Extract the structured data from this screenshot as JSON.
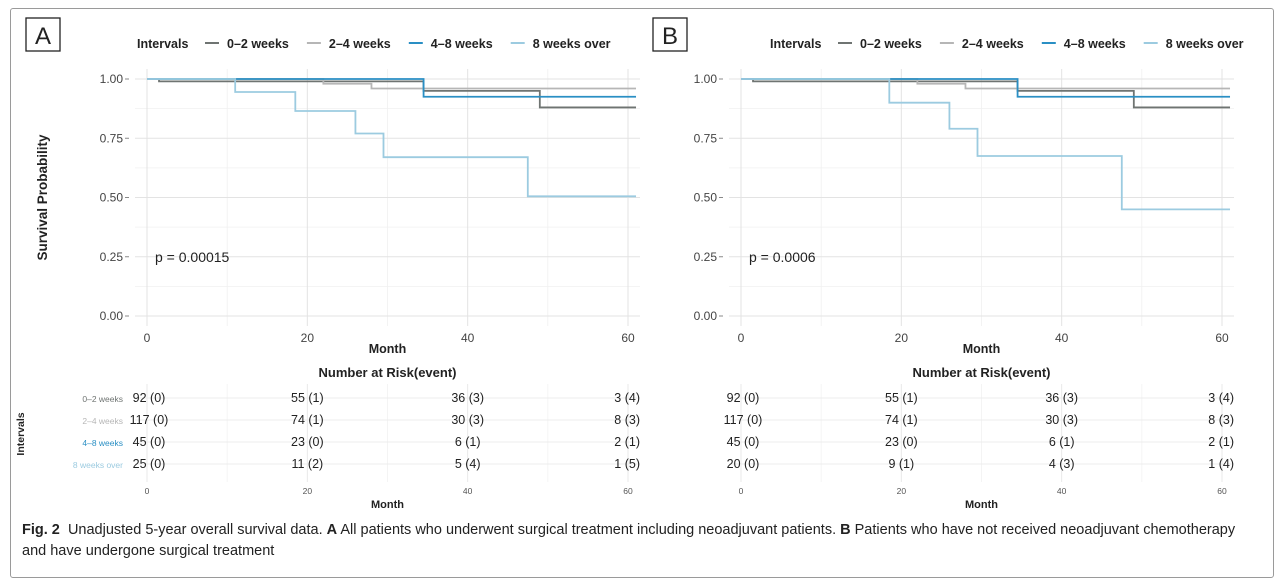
{
  "caption": {
    "fig_label": "Fig. 2",
    "intro": "Unadjusted 5-year overall survival data.",
    "a_label": "A",
    "a_text": "All patients who underwent surgical treatment including neoadjuvant patients.",
    "b_label": "B",
    "b_text": "Patients who have not received neoadjuvant chemotherapy and have undergone surgical treatment"
  },
  "colors": {
    "0-2 weeks": "#6f7472",
    "2-4 weeks": "#b6b6b6",
    "4-8 weeks": "#2a8fc4",
    "8 weeks over": "#9ccbe0"
  },
  "chart_data": [
    {
      "panel": "A",
      "type": "line",
      "step": true,
      "ylabel": "Survival Probability",
      "xlabel": "Month",
      "xlim": [
        0,
        60
      ],
      "ylim": [
        0,
        1
      ],
      "xticks": [
        0,
        20,
        40,
        60
      ],
      "yticks": [
        "0.00",
        "0.25",
        "0.50",
        "0.75",
        "1.00"
      ],
      "legend_title": "Intervals",
      "legend_position": "top",
      "grid": true,
      "pvalue": "p = 0.00015",
      "series": [
        {
          "name": "0–2 weeks",
          "x": [
            0,
            1.5,
            34.5,
            49,
            61
          ],
          "y": [
            1.0,
            0.99,
            0.95,
            0.88,
            0.88
          ]
        },
        {
          "name": "2–4 weeks",
          "x": [
            0,
            22,
            28,
            61
          ],
          "y": [
            1.0,
            0.98,
            0.96,
            0.96
          ]
        },
        {
          "name": "4–8 weeks",
          "x": [
            0,
            34.5,
            61
          ],
          "y": [
            1.0,
            0.925,
            0.925
          ]
        },
        {
          "name": "8 weeks over",
          "x": [
            0,
            11,
            18.5,
            26,
            29.5,
            47.5,
            61
          ],
          "y": [
            1.0,
            0.945,
            0.865,
            0.77,
            0.67,
            0.505,
            0.505
          ]
        }
      ],
      "risk_table": {
        "title": "Number at Risk(event)",
        "ylabel": "Intervals",
        "xlabel": "Month",
        "xticks": [
          0,
          20,
          40,
          60
        ],
        "show_row_labels": true,
        "rows": [
          {
            "label": "0–2 weeks",
            "values": [
              "92 (0)",
              "55 (1)",
              "36 (3)",
              "3 (4)"
            ]
          },
          {
            "label": "2–4 weeks",
            "values": [
              "117 (0)",
              "74 (1)",
              "30 (3)",
              "8 (3)"
            ]
          },
          {
            "label": "4–8 weeks",
            "values": [
              "45 (0)",
              "23 (0)",
              "6 (1)",
              "2 (1)"
            ]
          },
          {
            "label": "8 weeks over",
            "values": [
              "25 (0)",
              "11 (2)",
              "5 (4)",
              "1 (5)"
            ]
          }
        ]
      }
    },
    {
      "panel": "B",
      "type": "line",
      "step": true,
      "ylabel": "",
      "xlabel": "Month",
      "xlim": [
        0,
        60
      ],
      "ylim": [
        0,
        1
      ],
      "xticks": [
        0,
        20,
        40,
        60
      ],
      "yticks": [
        "0.00",
        "0.25",
        "0.50",
        "0.75",
        "1.00"
      ],
      "legend_title": "Intervals",
      "legend_position": "top",
      "grid": true,
      "pvalue": "p = 0.0006",
      "series": [
        {
          "name": "0–2 weeks",
          "x": [
            0,
            1.5,
            34.5,
            49,
            61
          ],
          "y": [
            1.0,
            0.99,
            0.95,
            0.88,
            0.88
          ]
        },
        {
          "name": "2–4 weeks",
          "x": [
            0,
            22,
            28,
            61
          ],
          "y": [
            1.0,
            0.98,
            0.96,
            0.96
          ]
        },
        {
          "name": "4–8 weeks",
          "x": [
            0,
            34.5,
            61
          ],
          "y": [
            1.0,
            0.925,
            0.925
          ]
        },
        {
          "name": "8 weeks over",
          "x": [
            0,
            18.5,
            26,
            29.5,
            47.5,
            61
          ],
          "y": [
            1.0,
            0.9,
            0.79,
            0.675,
            0.45,
            0.45
          ]
        }
      ],
      "risk_table": {
        "title": "Number at Risk(event)",
        "ylabel": "",
        "xlabel": "Month",
        "xticks": [
          0,
          20,
          40,
          60
        ],
        "show_row_labels": false,
        "rows": [
          {
            "label": "0–2 weeks",
            "values": [
              "92 (0)",
              "55 (1)",
              "36 (3)",
              "3 (4)"
            ]
          },
          {
            "label": "2–4 weeks",
            "values": [
              "117 (0)",
              "74 (1)",
              "30 (3)",
              "8 (3)"
            ]
          },
          {
            "label": "4–8 weeks",
            "values": [
              "45 (0)",
              "23 (0)",
              "6 (1)",
              "2 (1)"
            ]
          },
          {
            "label": "8 weeks over",
            "values": [
              "20 (0)",
              "9 (1)",
              "4 (3)",
              "1 (4)"
            ]
          }
        ]
      }
    }
  ]
}
